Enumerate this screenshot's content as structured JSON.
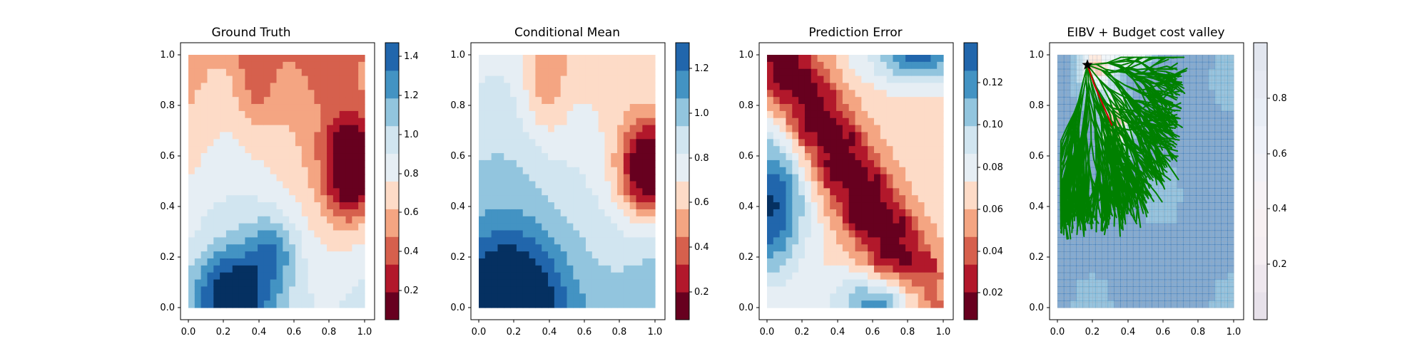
{
  "chart_data": [
    {
      "type": "heatmap",
      "title": "Ground Truth",
      "colormap": "RdBu",
      "xlim": [
        0,
        1
      ],
      "ylim": [
        0,
        1
      ],
      "xticks": [
        "0.0",
        "0.2",
        "0.4",
        "0.6",
        "0.8",
        "1.0"
      ],
      "yticks": [
        "0.0",
        "0.2",
        "0.4",
        "0.6",
        "0.8",
        "1.0"
      ],
      "colorbar": {
        "range": [
          0.08,
          1.5
        ],
        "levels": 10,
        "ticks": [
          "0.2",
          "0.4",
          "0.6",
          "0.8",
          "1.0",
          "1.2",
          "1.4"
        ],
        "tick_values": [
          0.2,
          0.4,
          0.6,
          0.8,
          1.0,
          1.2,
          1.4
        ]
      },
      "features": [
        {
          "x": 0.25,
          "y": 0.05,
          "amplitude": 0.55,
          "sx": 0.14,
          "sy": 0.12
        },
        {
          "x": 0.48,
          "y": 0.22,
          "amplitude": 0.35,
          "sx": 0.1,
          "sy": 0.1
        },
        {
          "x": 0.92,
          "y": 0.55,
          "amplitude": -0.75,
          "sx": 0.1,
          "sy": 0.14
        },
        {
          "x": 0.38,
          "y": 0.95,
          "amplitude": -0.25,
          "sx": 0.08,
          "sy": 0.18
        }
      ]
    },
    {
      "type": "heatmap",
      "title": "Conditional Mean",
      "colormap": "RdBu",
      "xlim": [
        0,
        1
      ],
      "ylim": [
        0,
        1
      ],
      "xticks": [
        "0.0",
        "0.2",
        "0.4",
        "0.6",
        "0.8",
        "1.0"
      ],
      "yticks": [
        "0.0",
        "0.2",
        "0.4",
        "0.6",
        "0.8",
        "1.0"
      ],
      "colorbar": {
        "range": [
          0.08,
          1.32
        ],
        "levels": 10,
        "ticks": [
          "0.2",
          "0.4",
          "0.6",
          "0.8",
          "1.0",
          "1.2"
        ],
        "tick_values": [
          0.2,
          0.4,
          0.6,
          0.8,
          1.0,
          1.2
        ]
      },
      "features": [
        {
          "x": 0.18,
          "y": 0.05,
          "amplitude": 0.45,
          "sx": 0.2,
          "sy": 0.16
        },
        {
          "x": 0.97,
          "y": 0.55,
          "amplitude": -0.8,
          "sx": 0.12,
          "sy": 0.14
        },
        {
          "x": 0.38,
          "y": 0.92,
          "amplitude": -0.25,
          "sx": 0.09,
          "sy": 0.18
        }
      ]
    },
    {
      "type": "heatmap",
      "title": "Prediction Error",
      "colormap": "RdBu",
      "xlim": [
        0,
        1
      ],
      "ylim": [
        0,
        1
      ],
      "xticks": [
        "0.0",
        "0.2",
        "0.4",
        "0.6",
        "0.8",
        "1.0"
      ],
      "yticks": [
        "0.0",
        "0.2",
        "0.4",
        "0.6",
        "0.8",
        "1.0"
      ],
      "colorbar": {
        "range": [
          0.005,
          0.14
        ],
        "levels": 10,
        "ticks": [
          "0.02",
          "0.04",
          "0.06",
          "0.08",
          "0.10",
          "0.12"
        ],
        "tick_values": [
          0.02,
          0.04,
          0.06,
          0.08,
          0.1,
          0.12
        ]
      },
      "features": [
        {
          "x": 0.02,
          "y": 0.4,
          "amplitude": 0.07,
          "sx": 0.14,
          "sy": 0.2
        },
        {
          "x": 0.7,
          "y": 0.0,
          "amplitude": 0.06,
          "sx": 0.22,
          "sy": 0.1
        },
        {
          "x": 0.85,
          "y": 1.0,
          "amplitude": 0.06,
          "sx": 0.18,
          "sy": 0.08
        }
      ]
    },
    {
      "type": "heatmap",
      "title": "EIBV + Budget cost valley",
      "colormap": "RdBu",
      "xlim": [
        0,
        1
      ],
      "ylim": [
        0,
        1
      ],
      "xticks": [
        "0.0",
        "0.2",
        "0.4",
        "0.6",
        "0.8",
        "1.0"
      ],
      "yticks": [
        "0.0",
        "0.2",
        "0.4",
        "0.6",
        "0.8",
        "1.0"
      ],
      "colorbar": {
        "range": [
          0.0,
          1.0
        ],
        "levels": 10,
        "ticks": [
          "0.2",
          "0.4",
          "0.6",
          "0.8"
        ],
        "tick_values": [
          0.2,
          0.4,
          0.6,
          0.8
        ]
      },
      "start_marker": {
        "x": 0.17,
        "y": 0.96,
        "symbol": "star",
        "color": "#000000"
      },
      "tree_color": "#008000",
      "path_color": "#cc0000",
      "selected_path": [
        [
          0.17,
          0.96
        ],
        [
          0.21,
          0.88
        ],
        [
          0.26,
          0.8
        ],
        [
          0.31,
          0.72
        ]
      ],
      "features": [
        {
          "x": 0.22,
          "y": 0.95,
          "amplitude": -0.5,
          "sx": 0.06,
          "sy": 0.05
        },
        {
          "x": 0.33,
          "y": 0.73,
          "amplitude": -0.6,
          "sx": 0.05,
          "sy": 0.08
        },
        {
          "x": 0.42,
          "y": 1.0,
          "amplitude": -0.4,
          "sx": 0.08,
          "sy": 0.04
        }
      ]
    }
  ]
}
